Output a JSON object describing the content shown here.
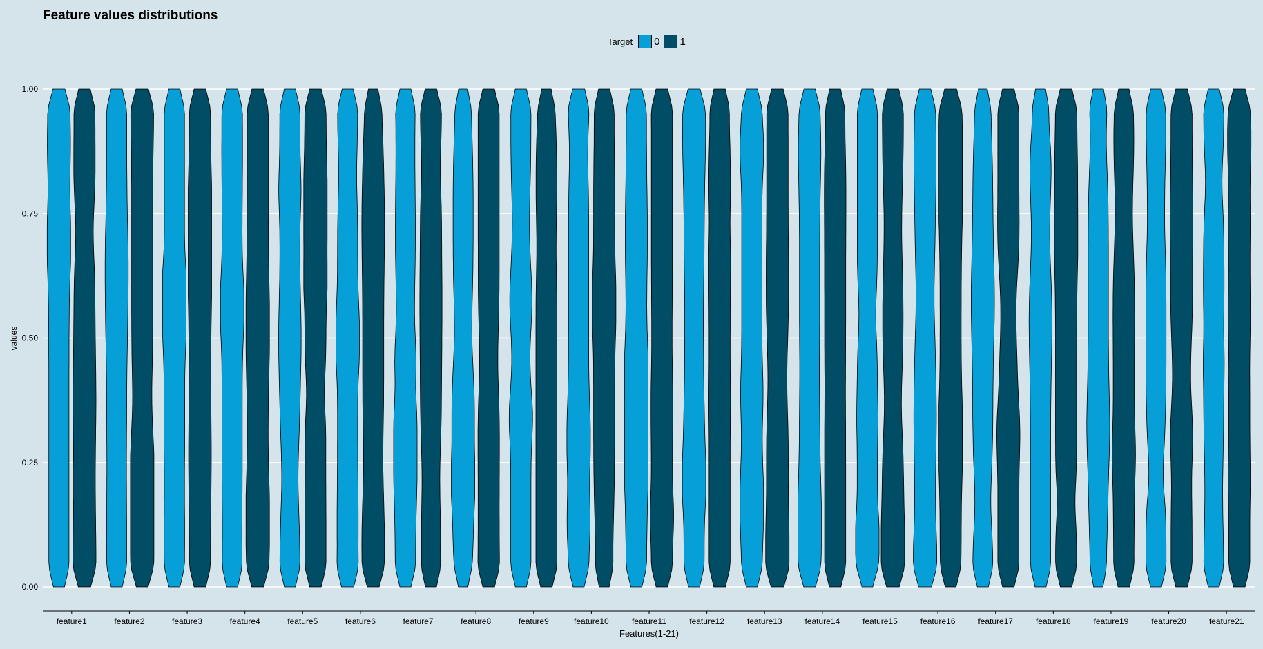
{
  "chart_data": {
    "type": "violin",
    "title": "Feature values distributions",
    "xlabel": "Features(1-21)",
    "ylabel": "values",
    "ylim": [
      0,
      1
    ],
    "yticks": [
      "0.00",
      "0.25",
      "0.50",
      "0.75",
      "1.00"
    ],
    "categories": [
      "feature1",
      "feature2",
      "feature3",
      "feature4",
      "feature5",
      "feature6",
      "feature7",
      "feature8",
      "feature9",
      "feature10",
      "feature11",
      "feature12",
      "feature13",
      "feature14",
      "feature15",
      "feature16",
      "feature17",
      "feature18",
      "feature19",
      "feature20",
      "feature21"
    ],
    "legend": {
      "title": "Target",
      "position": "top",
      "items": [
        {
          "label": "0",
          "color": "#069fd8"
        },
        {
          "label": "1",
          "color": "#014d66"
        }
      ]
    },
    "series": [
      {
        "name": "0",
        "color": "#069fd8"
      },
      {
        "name": "1",
        "color": "#014d66"
      }
    ],
    "grid": true,
    "background": "#d5e4eb"
  }
}
